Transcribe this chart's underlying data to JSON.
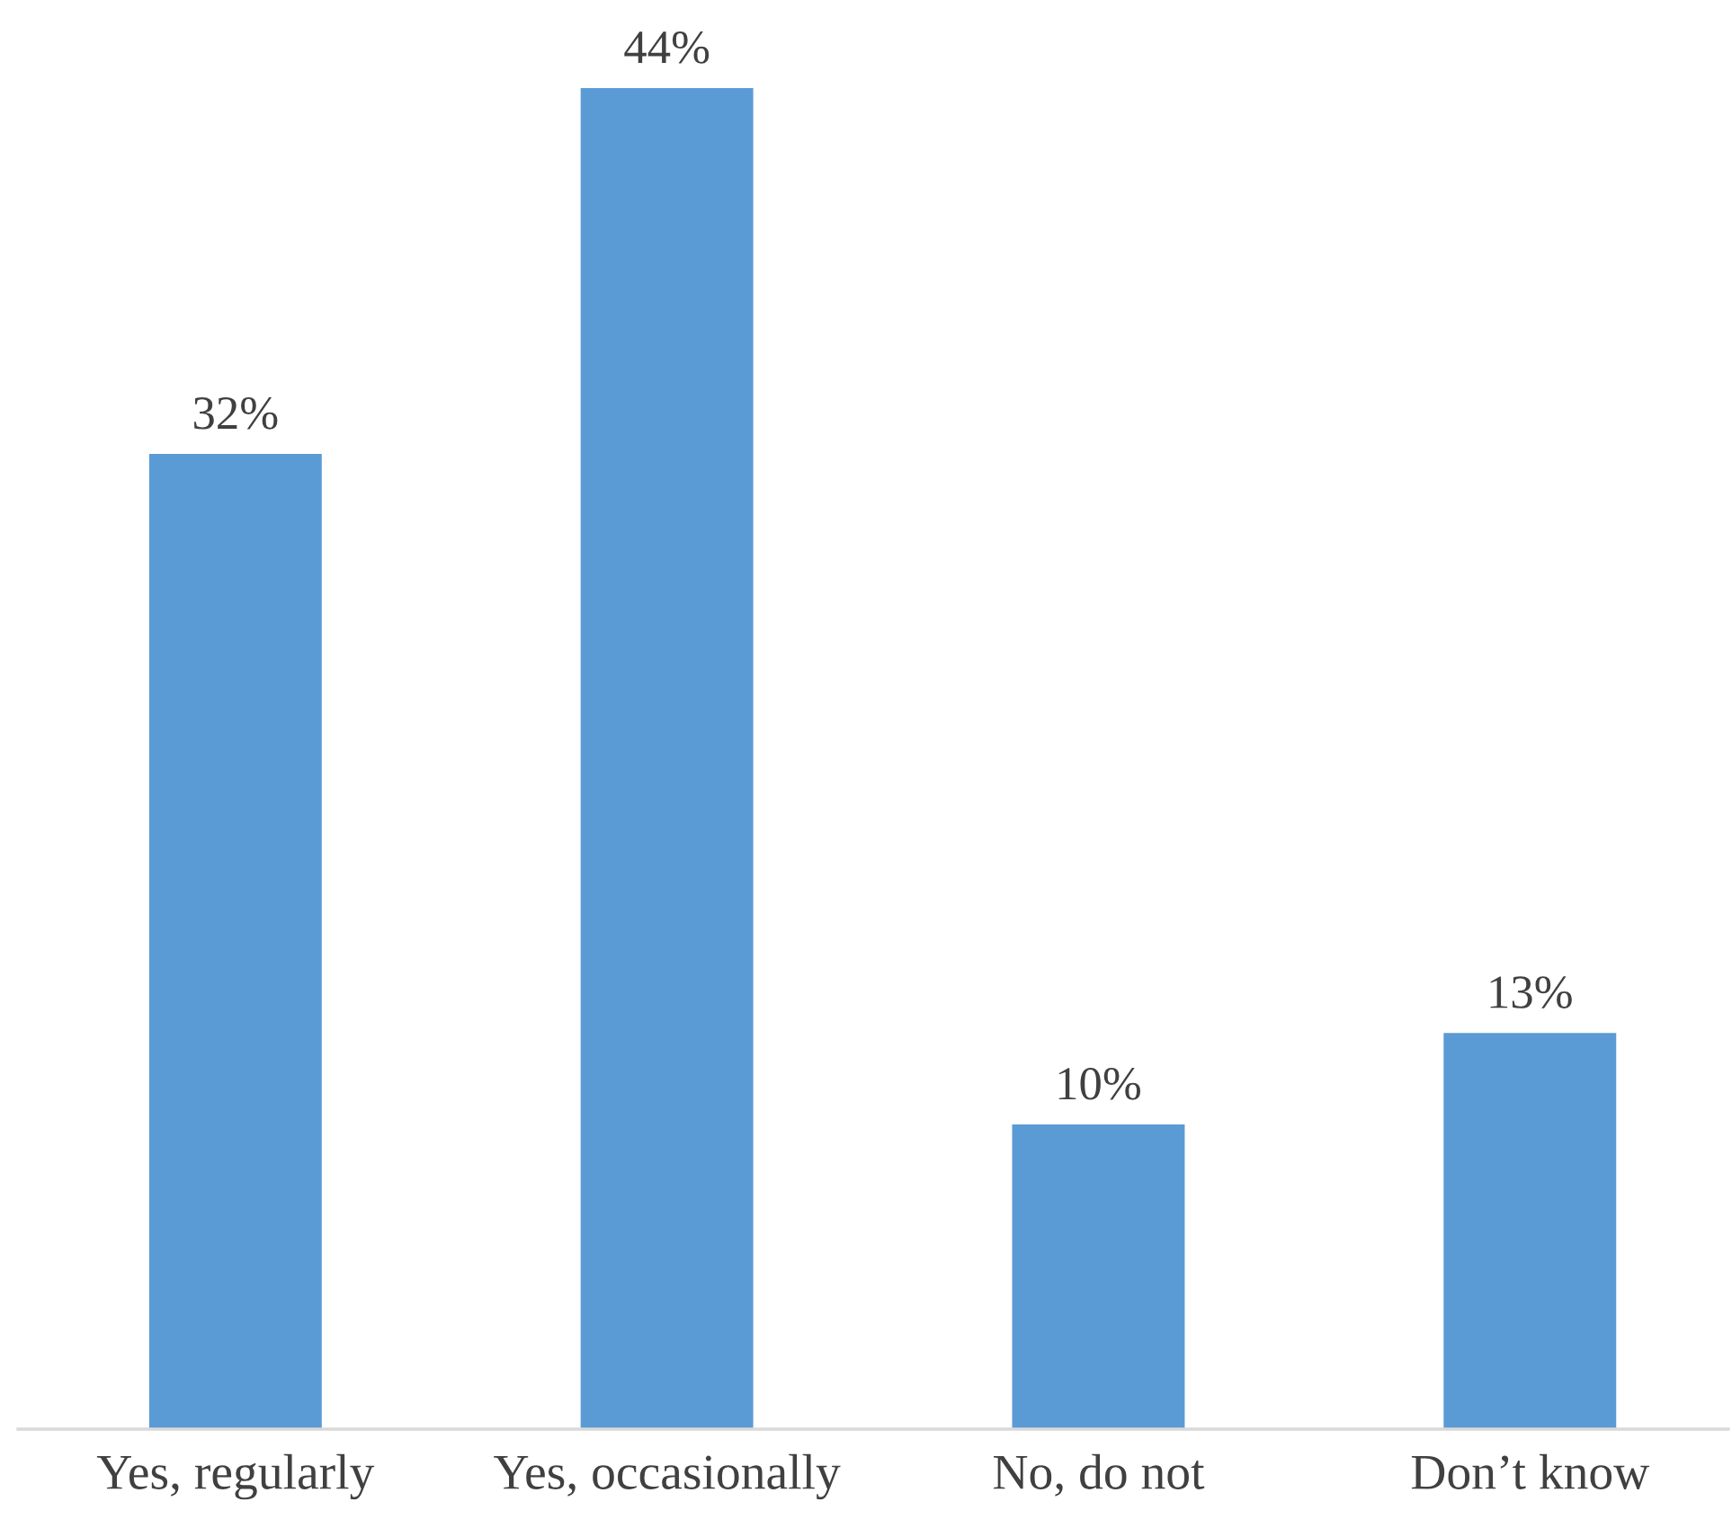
{
  "chart_data": {
    "type": "bar",
    "categories": [
      "Yes, regularly",
      "Yes, occasionally",
      "No, do not",
      "Don’t know"
    ],
    "values": [
      32,
      44,
      10,
      13
    ],
    "value_labels": [
      "32%",
      "44%",
      "10%",
      "13%"
    ],
    "color": "#5b9bd5",
    "grid": false,
    "legend": false
  }
}
